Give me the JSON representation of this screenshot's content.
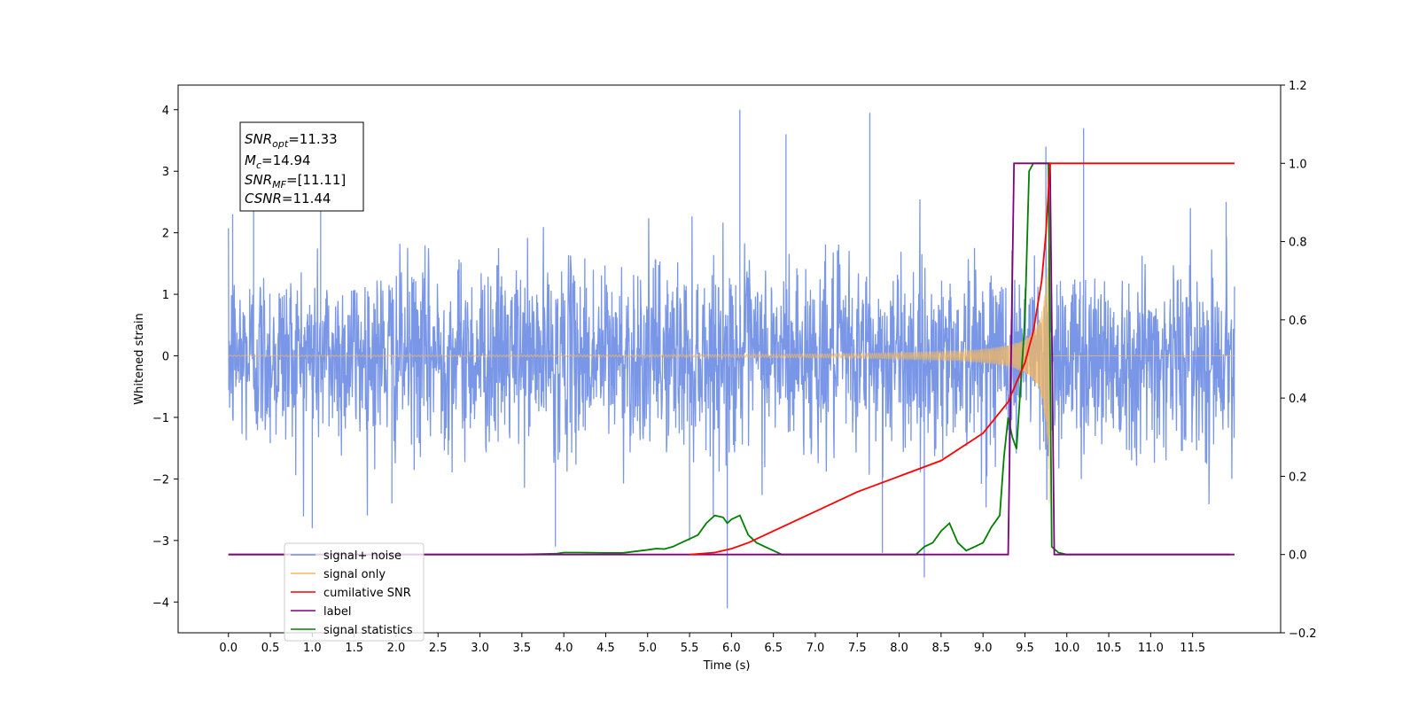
{
  "chart_data": {
    "type": "line",
    "title": "",
    "xlabel": "Time (s)",
    "ylabel": "Whitened strain",
    "y2label": "",
    "xlim": [
      -0.6,
      12.55
    ],
    "ylim": [
      -4.5,
      4.4
    ],
    "y2lim": [
      -0.2,
      1.2
    ],
    "x_ticks": [
      "0.0",
      "0.5",
      "1.0",
      "1.5",
      "2.0",
      "2.5",
      "3.0",
      "3.5",
      "4.0",
      "4.5",
      "5.0",
      "5.5",
      "6.0",
      "6.5",
      "7.0",
      "7.5",
      "8.0",
      "8.5",
      "9.0",
      "9.5",
      "10.0",
      "10.5",
      "11.0",
      "11.5"
    ],
    "y_ticks": [
      "4",
      "3",
      "2",
      "1",
      "0",
      "−1",
      "−2",
      "−3",
      "−4"
    ],
    "y2_ticks": [
      "1.2",
      "1.0",
      "0.8",
      "0.6",
      "0.4",
      "0.2",
      "0.0",
      "−0.2"
    ],
    "grid": false,
    "legend_position": "lower-left",
    "annotation": {
      "snr_opt_base": "SNR",
      "snr_opt_sub": "opt",
      "snr_opt_value": "=11.33",
      "mc_base": "M",
      "mc_sub": "c",
      "mc_value": "=14.94",
      "snr_mf_base": "SNR",
      "snr_mf_sub": "MF",
      "snr_mf_value": "=[11.11]",
      "csnr_base": "CSNR",
      "csnr_value": "=11.44"
    },
    "series": [
      {
        "name": "signal+ noise",
        "axis": "left",
        "color": "#7391e6",
        "description_range": [
          0.0,
          12.0
        ],
        "envelope": {
          "typical": 1.6,
          "spikes": [
            [
              0.05,
              2.3
            ],
            [
              0.3,
              2.4
            ],
            [
              1.0,
              -2.8
            ],
            [
              1.1,
              2.5
            ],
            [
              1.95,
              -2.4
            ],
            [
              3.9,
              -3.1
            ],
            [
              5.5,
              -3.0
            ],
            [
              5.95,
              -4.1
            ],
            [
              6.1,
              4.0
            ],
            [
              6.65,
              3.6
            ],
            [
              7.65,
              3.95
            ],
            [
              7.8,
              -3.2
            ],
            [
              8.3,
              -3.6
            ],
            [
              9.75,
              3.4
            ],
            [
              10.2,
              3.7
            ],
            [
              11.9,
              2.5
            ]
          ]
        }
      },
      {
        "name": "signal only",
        "axis": "left",
        "color": "#f5b85e",
        "chirp": {
          "start": 0.0,
          "merger": 9.8,
          "end": 12.0,
          "peak_amplitude": 3.1
        }
      },
      {
        "name": "cumilative SNR",
        "axis": "right",
        "color": "#ff0000",
        "x": [
          5.5,
          5.8,
          6.0,
          6.2,
          6.5,
          6.8,
          7.0,
          7.5,
          8.0,
          8.5,
          9.0,
          9.3,
          9.5,
          9.6,
          9.7,
          9.75,
          9.8,
          10.0,
          11.0,
          12.0
        ],
        "y": [
          0.0,
          0.005,
          0.015,
          0.03,
          0.06,
          0.09,
          0.11,
          0.16,
          0.2,
          0.24,
          0.31,
          0.39,
          0.49,
          0.57,
          0.7,
          0.82,
          1.0,
          1.0,
          1.0,
          1.0
        ]
      },
      {
        "name": "label",
        "axis": "right",
        "color": "#800080",
        "x": [
          0.0,
          9.3,
          9.37,
          9.8,
          9.85,
          12.0
        ],
        "y": [
          0.0,
          0.0,
          1.0,
          1.0,
          0.0,
          0.0
        ]
      },
      {
        "name": "signal statistics",
        "axis": "right",
        "color": "#008000",
        "x": [
          0.0,
          3.5,
          3.9,
          4.0,
          4.2,
          4.5,
          4.7,
          5.0,
          5.1,
          5.2,
          5.3,
          5.4,
          5.5,
          5.6,
          5.7,
          5.8,
          5.9,
          5.95,
          6.0,
          6.1,
          6.2,
          6.3,
          6.4,
          6.5,
          6.6,
          7.0,
          8.0,
          8.2,
          8.3,
          8.4,
          8.5,
          8.6,
          8.7,
          8.8,
          8.9,
          9.0,
          9.1,
          9.2,
          9.25,
          9.3,
          9.35,
          9.4,
          9.5,
          9.55,
          9.6,
          9.65,
          9.7,
          9.78,
          9.82,
          9.9,
          10.0,
          11.0,
          11.94
        ],
        "y": [
          0.0,
          0.0,
          0.002,
          0.005,
          0.005,
          0.004,
          0.004,
          0.012,
          0.015,
          0.014,
          0.02,
          0.03,
          0.04,
          0.05,
          0.08,
          0.1,
          0.095,
          0.08,
          0.09,
          0.1,
          0.05,
          0.03,
          0.02,
          0.01,
          0.0,
          0.0,
          0.0,
          0.0,
          0.02,
          0.03,
          0.06,
          0.08,
          0.03,
          0.01,
          0.02,
          0.03,
          0.07,
          0.1,
          0.25,
          0.35,
          0.3,
          0.27,
          0.6,
          0.98,
          1.0,
          1.0,
          1.0,
          1.0,
          0.02,
          0.005,
          0.0,
          0.0,
          0.0
        ]
      }
    ]
  }
}
